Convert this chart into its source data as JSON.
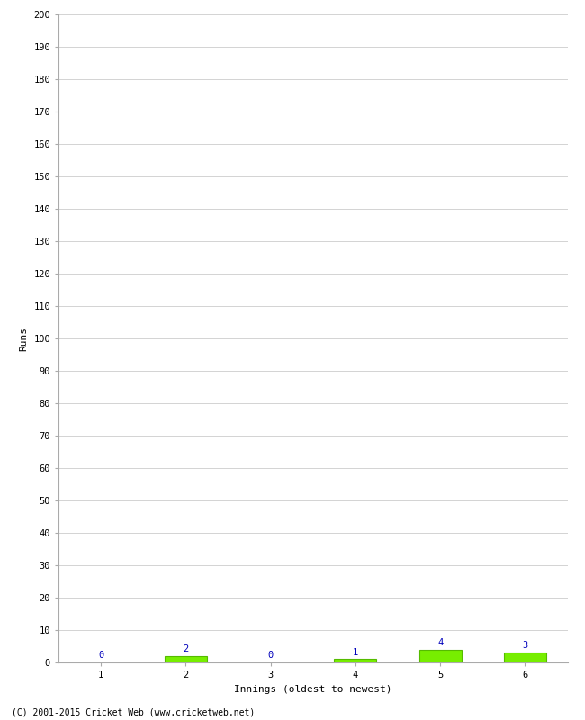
{
  "title": "",
  "xlabel": "Innings (oldest to newest)",
  "ylabel": "Runs",
  "categories": [
    "1",
    "2",
    "3",
    "4",
    "5",
    "6"
  ],
  "values": [
    0,
    2,
    0,
    1,
    4,
    3
  ],
  "bar_color": "#77ee00",
  "bar_edge_color": "#55bb00",
  "label_color": "#0000bb",
  "ylim": [
    0,
    200
  ],
  "yticks": [
    0,
    10,
    20,
    30,
    40,
    50,
    60,
    70,
    80,
    90,
    100,
    110,
    120,
    130,
    140,
    150,
    160,
    170,
    180,
    190,
    200
  ],
  "background_color": "#ffffff",
  "grid_color": "#cccccc",
  "footer": "(C) 2001-2015 Cricket Web (www.cricketweb.net)",
  "label_fontsize": 7.5,
  "axis_fontsize": 8,
  "tick_fontsize": 7.5,
  "footer_fontsize": 7
}
